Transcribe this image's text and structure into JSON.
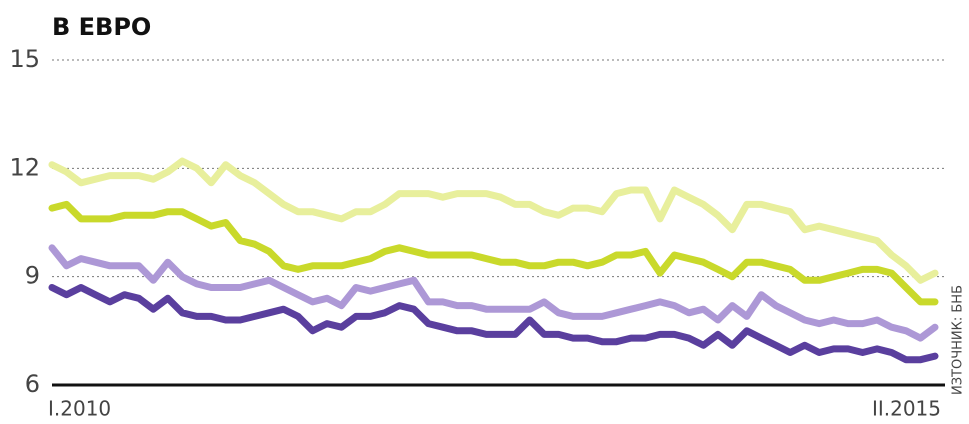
{
  "chart_data": {
    "type": "line",
    "title": "В ЕВРО",
    "source": "ИЗТОЧНИК: БНБ",
    "categories": [
      "I.2010",
      null,
      null,
      null,
      null,
      null,
      null,
      null,
      null,
      null,
      null,
      null,
      null,
      null,
      null,
      null,
      null,
      null,
      null,
      null,
      null,
      null,
      null,
      null,
      null,
      null,
      null,
      null,
      null,
      null,
      null,
      null,
      null,
      null,
      null,
      null,
      null,
      null,
      null,
      null,
      null,
      null,
      null,
      null,
      null,
      null,
      null,
      null,
      null,
      null,
      null,
      null,
      null,
      null,
      null,
      null,
      null,
      null,
      null,
      null,
      null,
      "II.2015"
    ],
    "series": [
      {
        "color": "#e8ef9c",
        "values": [
          12.1,
          11.9,
          11.6,
          11.7,
          11.8,
          11.8,
          11.8,
          11.7,
          11.9,
          12.2,
          12.0,
          11.6,
          12.1,
          11.8,
          11.6,
          11.3,
          11.0,
          10.8,
          10.8,
          10.7,
          10.6,
          10.8,
          10.8,
          11.0,
          11.3,
          11.3,
          11.3,
          11.2,
          11.3,
          11.3,
          11.3,
          11.2,
          11.0,
          11.0,
          10.8,
          10.7,
          10.9,
          10.9,
          10.8,
          11.3,
          11.4,
          11.4,
          10.6,
          11.4,
          11.2,
          11.0,
          10.7,
          10.3,
          11.0,
          11.0,
          10.9,
          10.8,
          10.3,
          10.4,
          10.3,
          10.2,
          10.1,
          10.0,
          9.6,
          9.3,
          8.9,
          9.1
        ]
      },
      {
        "color": "#c9d92b",
        "values": [
          10.9,
          11.0,
          10.6,
          10.6,
          10.6,
          10.7,
          10.7,
          10.7,
          10.8,
          10.8,
          10.6,
          10.4,
          10.5,
          10.0,
          9.9,
          9.7,
          9.3,
          9.2,
          9.3,
          9.3,
          9.3,
          9.4,
          9.5,
          9.7,
          9.8,
          9.7,
          9.6,
          9.6,
          9.6,
          9.6,
          9.5,
          9.4,
          9.4,
          9.3,
          9.3,
          9.4,
          9.4,
          9.3,
          9.4,
          9.6,
          9.6,
          9.7,
          9.1,
          9.6,
          9.5,
          9.4,
          9.2,
          9.0,
          9.4,
          9.4,
          9.3,
          9.2,
          8.9,
          8.9,
          9.0,
          9.1,
          9.2,
          9.2,
          9.1,
          8.7,
          8.3,
          8.3
        ]
      },
      {
        "color": "#ad98d6",
        "values": [
          9.8,
          9.3,
          9.5,
          9.4,
          9.3,
          9.3,
          9.3,
          8.9,
          9.4,
          9.0,
          8.8,
          8.7,
          8.7,
          8.7,
          8.8,
          8.9,
          8.7,
          8.5,
          8.3,
          8.4,
          8.2,
          8.7,
          8.6,
          8.7,
          8.8,
          8.9,
          8.3,
          8.3,
          8.2,
          8.2,
          8.1,
          8.1,
          8.1,
          8.1,
          8.3,
          8.0,
          7.9,
          7.9,
          7.9,
          8.0,
          8.1,
          8.2,
          8.3,
          8.2,
          8.0,
          8.1,
          7.8,
          8.2,
          7.9,
          8.5,
          8.2,
          8.0,
          7.8,
          7.7,
          7.8,
          7.7,
          7.7,
          7.8,
          7.6,
          7.5,
          7.3,
          7.6
        ]
      },
      {
        "color": "#5a3f9e",
        "values": [
          8.7,
          8.5,
          8.7,
          8.5,
          8.3,
          8.5,
          8.4,
          8.1,
          8.4,
          8.0,
          7.9,
          7.9,
          7.8,
          7.8,
          7.9,
          8.0,
          8.1,
          7.9,
          7.5,
          7.7,
          7.6,
          7.9,
          7.9,
          8.0,
          8.2,
          8.1,
          7.7,
          7.6,
          7.5,
          7.5,
          7.4,
          7.4,
          7.4,
          7.8,
          7.4,
          7.4,
          7.3,
          7.3,
          7.2,
          7.2,
          7.3,
          7.3,
          7.4,
          7.4,
          7.3,
          7.1,
          7.4,
          7.1,
          7.5,
          7.3,
          7.1,
          6.9,
          7.1,
          6.9,
          7.0,
          7.0,
          6.9,
          7.0,
          6.9,
          6.7,
          6.7,
          6.8
        ]
      }
    ],
    "ylim": [
      6,
      15
    ],
    "yticks": [
      6,
      9,
      12,
      15
    ],
    "grid": true
  }
}
